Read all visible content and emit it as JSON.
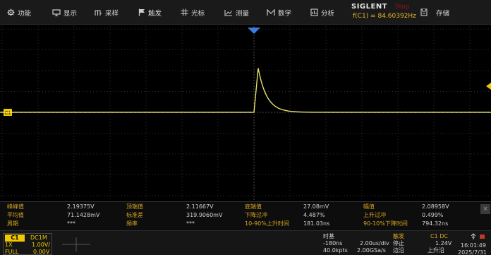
{
  "menu": {
    "items": [
      {
        "label": "功能",
        "icon": "gear-icon"
      },
      {
        "label": "显示",
        "icon": "display-icon"
      },
      {
        "label": "采样",
        "icon": "sampling-icon"
      },
      {
        "label": "触发",
        "icon": "flag-icon"
      },
      {
        "label": "光标",
        "icon": "cursor-icon"
      },
      {
        "label": "测量",
        "icon": "measure-icon"
      },
      {
        "label": "数学",
        "icon": "math-icon"
      },
      {
        "label": "分析",
        "icon": "analysis-icon"
      }
    ],
    "brand": "SIGLENT",
    "state": "Stop",
    "frequency": "f(C1) = 84.60392Hz",
    "storage": {
      "label": "存储",
      "icon": "save-icon"
    }
  },
  "channel_marker": "C1",
  "colors": {
    "trace": "#e8e36a",
    "label": "#d9a521",
    "grid": "#2e2e2e",
    "trigger": "#3b7de0"
  },
  "measurements": {
    "rows": [
      [
        {
          "label": "峰峰值",
          "value": "2.19375V"
        },
        {
          "label": "顶端值",
          "value": "2.11667V"
        },
        {
          "label": "底端值",
          "value": "27.08mV"
        },
        {
          "label": "幅值",
          "value": "2.08958V"
        }
      ],
      [
        {
          "label": "平均值",
          "value": "71.1428mV"
        },
        {
          "label": "标准差",
          "value": "319.9060mV"
        },
        {
          "label": "下降过冲",
          "value": "4.487%"
        },
        {
          "label": "上升过冲",
          "value": "0.499%"
        }
      ],
      [
        {
          "label": "周期",
          "value": "***"
        },
        {
          "label": "频率",
          "value": "***"
        },
        {
          "label": "10-90%上升时间",
          "value": "181.03ns"
        },
        {
          "label": "90-10%下降时间",
          "value": "794.32ns"
        }
      ]
    ],
    "close": "×"
  },
  "status": {
    "channel": {
      "name": "C1",
      "coupling": "DC1M",
      "probe": "1X",
      "scale": "1.00V/",
      "bandwidth": "FULL",
      "offset": "0.00V"
    },
    "timebase": {
      "label": "时基",
      "delay": "-180ns",
      "scale": "2.00us/div",
      "memory": "40.0kpts",
      "rate": "2.00GSa/s"
    },
    "acquire": {
      "state": "停止",
      "mode": "边沿"
    },
    "trigger": {
      "label": "触发",
      "source": "C1 DC",
      "level": "1.24V",
      "slope": "上升沿"
    },
    "clock": {
      "time": "16:01:49",
      "date": "2025/7/31"
    }
  },
  "trace": {
    "baseline_v": 0,
    "peak_v": 2.12,
    "trigger_time_us": 0,
    "rise_ns": 181.03,
    "fall_ns": 794.32
  }
}
